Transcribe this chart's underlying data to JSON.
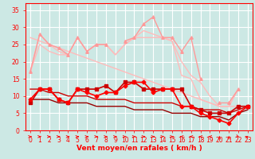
{
  "x": [
    0,
    1,
    2,
    3,
    4,
    5,
    6,
    7,
    8,
    9,
    10,
    11,
    12,
    13,
    14,
    15,
    16,
    17,
    18,
    19,
    20,
    21,
    22,
    23
  ],
  "bg_color": "#cce8e4",
  "grid_color": "#ffffff",
  "tick_color": "#ff0000",
  "label_color": "#ff0000",
  "xlabel": "Vent moyen/en rafales ( km/h )",
  "xlim": [
    -0.5,
    23.5
  ],
  "ylim": [
    0,
    37
  ],
  "yticks": [
    0,
    5,
    10,
    15,
    20,
    25,
    30,
    35
  ],
  "xticks": [
    0,
    1,
    2,
    3,
    4,
    5,
    6,
    7,
    8,
    9,
    10,
    11,
    12,
    13,
    14,
    15,
    16,
    17,
    18,
    19,
    20,
    21,
    22,
    23
  ],
  "series": [
    {
      "label": "light_pink_triangle_jagged",
      "y": [
        17,
        28,
        25,
        24,
        22,
        27,
        23,
        25,
        25,
        null,
        26,
        27,
        31,
        33,
        27,
        27,
        23,
        27,
        15,
        null,
        8,
        8,
        12,
        null
      ],
      "color": "#ff9999",
      "lw": 1.0,
      "marker": "^",
      "ms": 2.5,
      "zorder": 3
    },
    {
      "label": "light_pink_upper_envelope",
      "y": [
        17,
        28,
        25,
        23,
        22,
        27,
        23,
        25,
        25,
        22,
        25,
        27,
        29,
        28,
        27,
        26,
        20,
        16,
        14,
        10,
        7,
        7,
        12,
        null
      ],
      "color": "#ffbbbb",
      "lw": 1.0,
      "marker": null,
      "ms": 0,
      "zorder": 2
    },
    {
      "label": "light_pink_diagonal_top",
      "y": [
        27,
        26,
        25,
        24,
        23,
        22,
        21,
        20,
        19,
        18,
        17,
        16,
        15,
        14,
        13,
        12,
        11,
        10,
        9,
        8,
        7,
        7,
        7,
        7
      ],
      "color": "#ffbbbb",
      "lw": 1.0,
      "marker": null,
      "ms": 0,
      "zorder": 2
    },
    {
      "label": "light_pink_lower_envelope",
      "y": [
        17,
        25,
        23,
        22,
        22,
        27,
        23,
        25,
        25,
        22,
        25,
        27,
        27,
        27,
        27,
        26,
        16,
        15,
        9,
        8,
        7,
        7,
        12,
        null
      ],
      "color": "#ffbbbb",
      "lw": 1.0,
      "marker": null,
      "ms": 0,
      "zorder": 2
    },
    {
      "label": "red_square_upper",
      "y": [
        8,
        12,
        12,
        9,
        8,
        12,
        12,
        12,
        13,
        11,
        14,
        14,
        12,
        12,
        12,
        12,
        12,
        7,
        6,
        5,
        5,
        5,
        7,
        7
      ],
      "color": "#cc0000",
      "lw": 1.2,
      "marker": "s",
      "ms": 2.5,
      "zorder": 4
    },
    {
      "label": "red_diamond_lower",
      "y": [
        9,
        12,
        12,
        9,
        8,
        12,
        11,
        10,
        11,
        11,
        13,
        14,
        14,
        11,
        12,
        12,
        7,
        7,
        5,
        4,
        3,
        2,
        5,
        7
      ],
      "color": "#ff0000",
      "lw": 1.2,
      "marker": "D",
      "ms": 2.5,
      "zorder": 4
    },
    {
      "label": "dark_red_diagonal_upper",
      "y": [
        12,
        12,
        11,
        11,
        10,
        10,
        10,
        9,
        9,
        9,
        9,
        8,
        8,
        8,
        8,
        8,
        7,
        7,
        6,
        6,
        6,
        5,
        6,
        7
      ],
      "color": "#cc0000",
      "lw": 1.0,
      "marker": null,
      "ms": 0,
      "zorder": 2
    },
    {
      "label": "dark_red_diagonal_lower",
      "y": [
        9,
        9,
        9,
        8,
        8,
        8,
        8,
        7,
        7,
        7,
        7,
        6,
        6,
        6,
        6,
        5,
        5,
        5,
        4,
        4,
        4,
        3,
        5,
        6
      ],
      "color": "#990000",
      "lw": 1.0,
      "marker": null,
      "ms": 0,
      "zorder": 2
    }
  ],
  "arrow_angles": [
    0,
    0,
    0,
    0,
    0,
    0,
    0,
    0,
    0,
    0,
    0,
    0,
    0,
    0,
    0,
    0,
    180,
    180,
    180,
    180,
    90,
    90,
    315,
    45
  ]
}
